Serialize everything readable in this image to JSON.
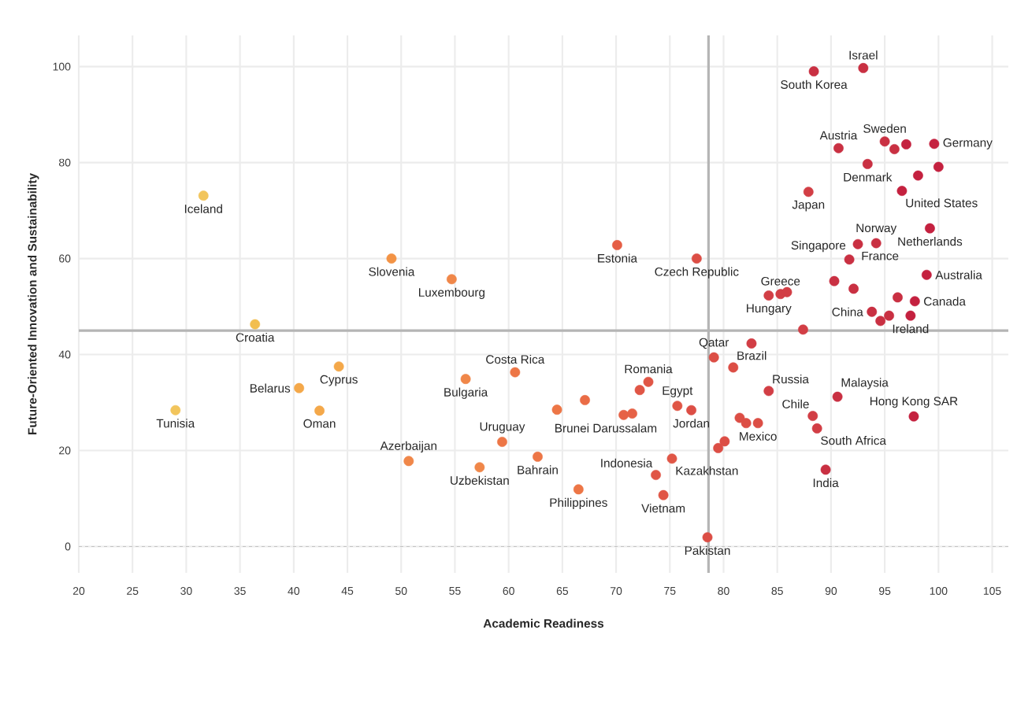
{
  "chart_data": {
    "type": "scatter",
    "xlabel": "Academic Readiness",
    "ylabel": "Future-Oriented Innovation and Sustainability",
    "xlim": [
      20,
      106.5
    ],
    "ylim": [
      -5.5,
      106.5
    ],
    "xticks": [
      20,
      25,
      30,
      35,
      40,
      45,
      50,
      55,
      60,
      65,
      70,
      75,
      80,
      85,
      90,
      95,
      100,
      105
    ],
    "yticks": [
      0,
      20,
      40,
      60,
      80,
      100
    ],
    "grid": true,
    "marker": "circle",
    "ref_lines": [
      {
        "axis": "x",
        "value": 78.6,
        "color": "#b5b5b5",
        "line_style": "solid"
      },
      {
        "axis": "y",
        "value": 45,
        "color": "#b5b5b5",
        "line_style": "solid"
      },
      {
        "axis": "y",
        "value": 0,
        "color": "#c4c4c4",
        "line_style": "dashed"
      }
    ],
    "series": [
      {
        "x": [
          93.0,
          88.4,
          90.7,
          95.0,
          99.6,
          93.4,
          96.6,
          87.9,
          99.2,
          94.2,
          92.5,
          91.7,
          98.9,
          97.8,
          93.8,
          97.4,
          84.2,
          85.3,
          77.5,
          70.1,
          79.1,
          80.9,
          84.2,
          90.6,
          97.7,
          88.3,
          88.7,
          83.2,
          77.0,
          75.7,
          89.5,
          75.2,
          73.7,
          74.4,
          78.5,
          66.5,
          62.7,
          73.0,
          70.7,
          60.6,
          59.4,
          31.6,
          49.1,
          54.7,
          36.4,
          44.2,
          40.5,
          29.0,
          42.4,
          56.0,
          50.7,
          57.3,
          95.9,
          97.0,
          100.0,
          98.1,
          90.3,
          92.1,
          85.9,
          96.2,
          95.4,
          94.6,
          87.4,
          82.6,
          81.5,
          82.1,
          80.1,
          79.5,
          72.2,
          71.5,
          67.1,
          64.5
        ],
        "values": [
          99.7,
          99.0,
          83.0,
          84.4,
          83.9,
          79.7,
          74.1,
          73.9,
          66.3,
          63.2,
          63.0,
          59.8,
          56.6,
          51.1,
          48.9,
          48.1,
          52.3,
          52.6,
          60.0,
          62.8,
          39.4,
          37.3,
          32.4,
          31.2,
          27.1,
          27.2,
          24.6,
          25.7,
          28.4,
          29.3,
          16.0,
          18.3,
          14.9,
          10.7,
          1.9,
          11.9,
          18.7,
          34.3,
          27.4,
          36.3,
          21.8,
          73.1,
          60.0,
          55.7,
          46.3,
          37.5,
          33.0,
          28.4,
          28.3,
          34.9,
          17.8,
          16.5,
          82.8,
          83.8,
          79.1,
          77.3,
          55.3,
          53.7,
          53.0,
          51.9,
          48.1,
          47.0,
          45.2,
          42.3,
          26.8,
          25.7,
          21.9,
          20.5,
          32.6,
          27.7,
          30.5,
          28.5
        ],
        "colors": [
          "#c93042",
          "#c93042",
          "#c93042",
          "#c93042",
          "#c4213f",
          "#c93042",
          "#c4213f",
          "#d23e45",
          "#c4213f",
          "#c93042",
          "#c93042",
          "#c93042",
          "#c4213f",
          "#c4213f",
          "#c93042",
          "#c4213f",
          "#d23e45",
          "#d23e45",
          "#dc4e45",
          "#e55e45",
          "#dc4e45",
          "#dc4e45",
          "#d23e45",
          "#c93042",
          "#c4213f",
          "#d23e45",
          "#d23e45",
          "#dc4e45",
          "#dc4e45",
          "#e05646",
          "#c93042",
          "#e05646",
          "#e05646",
          "#e05646",
          "#dc4e45",
          "#ed7646",
          "#ed7646",
          "#e05646",
          "#e66246",
          "#ed7646",
          "#ed7646",
          "#f2c55c",
          "#f39345",
          "#f08749",
          "#f2be4f",
          "#f4a84a",
          "#f4a84a",
          "#f2c55c",
          "#f4a84a",
          "#f08749",
          "#f08749",
          "#f08749",
          "#c93042",
          "#c4213f",
          "#c4213f",
          "#c4213f",
          "#c93042",
          "#c93042",
          "#d23e45",
          "#c93042",
          "#c93042",
          "#c93042",
          "#d23e45",
          "#d23e45",
          "#dc4e45",
          "#dc4e45",
          "#dc4e45",
          "#dc4e45",
          "#e05646",
          "#e66246",
          "#ea6c46",
          "#ed7646"
        ]
      }
    ],
    "annotations": [
      {
        "text": "Israel",
        "x": 93.0,
        "y": 99.7
      },
      {
        "text": "South Korea",
        "x": 88.4,
        "y": 99.0
      },
      {
        "text": "Austria",
        "x": 90.7,
        "y": 83.0
      },
      {
        "text": "Sweden",
        "x": 95.0,
        "y": 84.4
      },
      {
        "text": "Germany",
        "x": 99.6,
        "y": 83.9
      },
      {
        "text": "Denmark",
        "x": 93.4,
        "y": 79.7
      },
      {
        "text": "United States",
        "x": 96.6,
        "y": 74.1
      },
      {
        "text": "Japan",
        "x": 87.9,
        "y": 73.9
      },
      {
        "text": "Netherlands",
        "x": 99.2,
        "y": 66.3
      },
      {
        "text": "Norway",
        "x": 94.2,
        "y": 63.2
      },
      {
        "text": "France",
        "x": 92.5,
        "y": 63.0
      },
      {
        "text": "Singapore",
        "x": 91.7,
        "y": 59.8
      },
      {
        "text": "Australia",
        "x": 98.9,
        "y": 56.6
      },
      {
        "text": "Canada",
        "x": 97.8,
        "y": 51.1
      },
      {
        "text": "China",
        "x": 93.8,
        "y": 48.9
      },
      {
        "text": "Ireland",
        "x": 97.4,
        "y": 48.1
      },
      {
        "text": "Hungary",
        "x": 84.2,
        "y": 52.3
      },
      {
        "text": "Greece",
        "x": 85.3,
        "y": 52.6
      },
      {
        "text": "Czech Republic",
        "x": 77.5,
        "y": 60.0
      },
      {
        "text": "Estonia",
        "x": 70.1,
        "y": 62.8
      },
      {
        "text": "Qatar",
        "x": 79.1,
        "y": 39.4
      },
      {
        "text": "Brazil",
        "x": 80.9,
        "y": 37.3
      },
      {
        "text": "Russia",
        "x": 84.2,
        "y": 32.4
      },
      {
        "text": "Malaysia",
        "x": 90.6,
        "y": 31.2
      },
      {
        "text": "Hong Kong SAR",
        "x": 97.7,
        "y": 27.1
      },
      {
        "text": "Chile",
        "x": 88.3,
        "y": 27.2
      },
      {
        "text": "South Africa",
        "x": 88.7,
        "y": 24.6
      },
      {
        "text": "Mexico",
        "x": 83.2,
        "y": 25.7
      },
      {
        "text": "Jordan",
        "x": 77.0,
        "y": 28.4
      },
      {
        "text": "Egypt",
        "x": 75.7,
        "y": 29.3
      },
      {
        "text": "India",
        "x": 89.5,
        "y": 16.0
      },
      {
        "text": "Kazakhstan",
        "x": 75.2,
        "y": 18.3
      },
      {
        "text": "Indonesia",
        "x": 73.7,
        "y": 14.9
      },
      {
        "text": "Vietnam",
        "x": 74.4,
        "y": 10.7
      },
      {
        "text": "Pakistan",
        "x": 78.5,
        "y": 1.9
      },
      {
        "text": "Philippines",
        "x": 66.5,
        "y": 11.9
      },
      {
        "text": "Bahrain",
        "x": 62.7,
        "y": 18.7
      },
      {
        "text": "Romania",
        "x": 73.0,
        "y": 34.3
      },
      {
        "text": "Brunei Darussalam",
        "x": 70.7,
        "y": 27.4
      },
      {
        "text": "Costa Rica",
        "x": 60.6,
        "y": 36.3
      },
      {
        "text": "Uruguay",
        "x": 59.4,
        "y": 21.8
      },
      {
        "text": "Iceland",
        "x": 31.6,
        "y": 73.1
      },
      {
        "text": "Slovenia",
        "x": 49.1,
        "y": 60.0
      },
      {
        "text": "Luxembourg",
        "x": 54.7,
        "y": 55.7
      },
      {
        "text": "Croatia",
        "x": 36.4,
        "y": 46.3
      },
      {
        "text": "Cyprus",
        "x": 44.2,
        "y": 37.5
      },
      {
        "text": "Belarus",
        "x": 40.5,
        "y": 33.0
      },
      {
        "text": "Tunisia",
        "x": 29.0,
        "y": 28.4
      },
      {
        "text": "Oman",
        "x": 42.4,
        "y": 28.3
      },
      {
        "text": "Bulgaria",
        "x": 56.0,
        "y": 34.9
      },
      {
        "text": "Azerbaijan",
        "x": 50.7,
        "y": 17.8
      },
      {
        "text": "Uzbekistan",
        "x": 57.3,
        "y": 16.5
      }
    ]
  }
}
